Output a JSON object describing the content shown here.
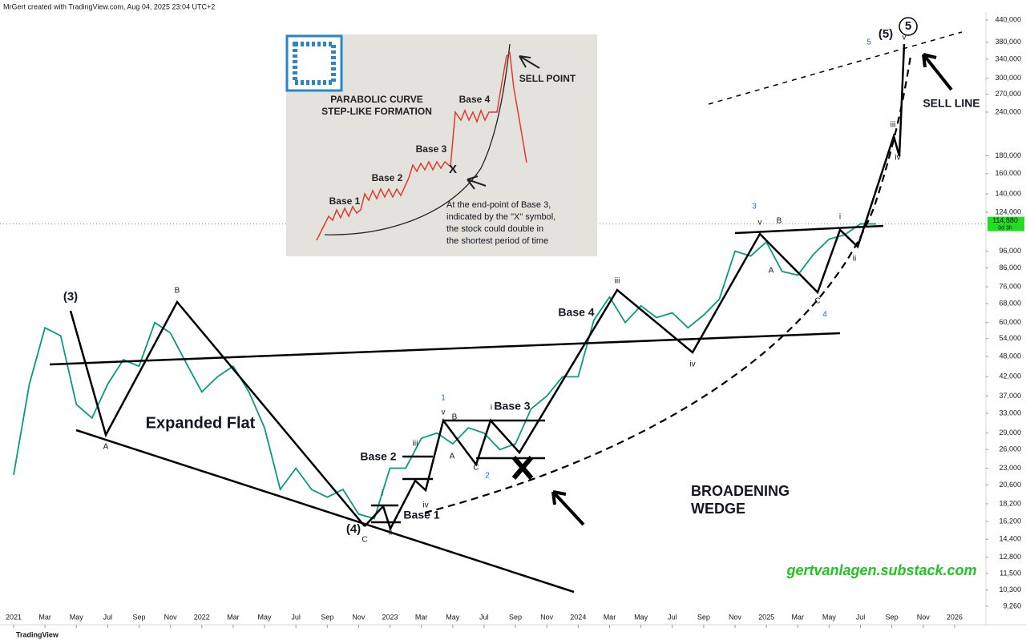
{
  "header": "MrGert created with TradingView.com, Aug 04, 2025 23:04 UTC+2",
  "footer": "TradingView",
  "chart_data": {
    "type": "line",
    "log_scale": true,
    "series": [
      {
        "name": "Price",
        "color": "#089981",
        "x": [
          "2021-01",
          "2021-02",
          "2021-03",
          "2021-04",
          "2021-05",
          "2021-06",
          "2021-07",
          "2021-08",
          "2021-09",
          "2021-10",
          "2021-11",
          "2021-12",
          "2022-01",
          "2022-02",
          "2022-03",
          "2022-04",
          "2022-05",
          "2022-06",
          "2022-07",
          "2022-08",
          "2022-09",
          "2022-10",
          "2022-11",
          "2022-12",
          "2023-01",
          "2023-02",
          "2023-03",
          "2023-04",
          "2023-05",
          "2023-06",
          "2023-07",
          "2023-08",
          "2023-09",
          "2023-10",
          "2023-11",
          "2023-12",
          "2024-01",
          "2024-02",
          "2024-03",
          "2024-04",
          "2024-05",
          "2024-06",
          "2024-07",
          "2024-08",
          "2024-09",
          "2024-10",
          "2024-11",
          "2024-12",
          "2025-01",
          "2025-02",
          "2025-03",
          "2025-04",
          "2025-05",
          "2025-06",
          "2025-07",
          "2025-08"
        ],
        "values": [
          22000,
          40000,
          58000,
          55000,
          35000,
          32000,
          40000,
          47000,
          45000,
          60000,
          56000,
          46000,
          38000,
          42000,
          45000,
          38000,
          30000,
          20000,
          23000,
          20000,
          19000,
          20000,
          17000,
          16500,
          23000,
          23000,
          28000,
          29000,
          27000,
          30000,
          29000,
          26000,
          27000,
          34000,
          37000,
          42000,
          42000,
          61000,
          71000,
          60000,
          67000,
          62000,
          64000,
          58000,
          63000,
          70000,
          96000,
          93000,
          102000,
          84000,
          82000,
          94000,
          104000,
          107000,
          115000,
          114880
        ]
      }
    ],
    "last_price": {
      "value": 114880,
      "label": "114,880"
    },
    "countdown": "0d 3h",
    "xlim": [
      "2021-01",
      "2026-03"
    ],
    "xticks": [
      {
        "value": "2021-01",
        "label": "2021"
      },
      {
        "value": "2021-03",
        "label": "Mar"
      },
      {
        "value": "2021-05",
        "label": "May"
      },
      {
        "value": "2021-07",
        "label": "Jul"
      },
      {
        "value": "2021-09",
        "label": "Sep"
      },
      {
        "value": "2021-11",
        "label": "Nov"
      },
      {
        "value": "2022-01",
        "label": "2022"
      },
      {
        "value": "2022-03",
        "label": "Mar"
      },
      {
        "value": "2022-05",
        "label": "May"
      },
      {
        "value": "2022-07",
        "label": "Jul"
      },
      {
        "value": "2022-09",
        "label": "Sep"
      },
      {
        "value": "2022-11",
        "label": "Nov"
      },
      {
        "value": "2023-01",
        "label": "2023"
      },
      {
        "value": "2023-03",
        "label": "Mar"
      },
      {
        "value": "2023-05",
        "label": "May"
      },
      {
        "value": "2023-07",
        "label": "Jul"
      },
      {
        "value": "2023-09",
        "label": "Sep"
      },
      {
        "value": "2023-11",
        "label": "Nov"
      },
      {
        "value": "2024-01",
        "label": "2024"
      },
      {
        "value": "2024-03",
        "label": "Mar"
      },
      {
        "value": "2024-05",
        "label": "May"
      },
      {
        "value": "2024-07",
        "label": "Jul"
      },
      {
        "value": "2024-09",
        "label": "Sep"
      },
      {
        "value": "2024-11",
        "label": "Nov"
      },
      {
        "value": "2025-01",
        "label": "2025"
      },
      {
        "value": "2025-03",
        "label": "Mar"
      },
      {
        "value": "2025-05",
        "label": "May"
      },
      {
        "value": "2025-07",
        "label": "Jul"
      },
      {
        "value": "2025-09",
        "label": "Sep"
      },
      {
        "value": "2025-11",
        "label": "Nov"
      },
      {
        "value": "2026-01",
        "label": "2026"
      }
    ],
    "ylim": [
      9260,
      440000
    ],
    "yticks": [
      {
        "value": 440000,
        "label": "440,000"
      },
      {
        "value": 380000,
        "label": "380,000"
      },
      {
        "value": 340000,
        "label": "340,000"
      },
      {
        "value": 300000,
        "label": "300,000"
      },
      {
        "value": 270000,
        "label": "270,000"
      },
      {
        "value": 240000,
        "label": "240,000"
      },
      {
        "value": 180000,
        "label": "180,000"
      },
      {
        "value": 160000,
        "label": "160,000"
      },
      {
        "value": 140000,
        "label": "140,000"
      },
      {
        "value": 124000,
        "label": "124,000"
      },
      {
        "value": 96000,
        "label": "96,000"
      },
      {
        "value": 86000,
        "label": "86,000"
      },
      {
        "value": 76000,
        "label": "76,000"
      },
      {
        "value": 68000,
        "label": "68,000"
      },
      {
        "value": 60000,
        "label": "60,000"
      },
      {
        "value": 54000,
        "label": "54,000"
      },
      {
        "value": 48000,
        "label": "48,000"
      },
      {
        "value": 42000,
        "label": "42,000"
      },
      {
        "value": 37000,
        "label": "37,000"
      },
      {
        "value": 33000,
        "label": "33,000"
      },
      {
        "value": 29000,
        "label": "29,000"
      },
      {
        "value": 26000,
        "label": "26,000"
      },
      {
        "value": 23000,
        "label": "23,000"
      },
      {
        "value": 20600,
        "label": "20,600"
      },
      {
        "value": 18200,
        "label": "18,200"
      },
      {
        "value": 16200,
        "label": "16,200"
      },
      {
        "value": 14400,
        "label": "14,400"
      },
      {
        "value": 12800,
        "label": "12,800"
      },
      {
        "value": 11500,
        "label": "11,500"
      },
      {
        "value": 10300,
        "label": "10,300"
      },
      {
        "value": 9260,
        "label": "9,260"
      }
    ],
    "annotations": [
      "(3)",
      "B",
      "A",
      "Expanded Flat",
      "(4)",
      "C",
      "Base 1",
      "Base 2",
      "Base 3",
      "Base 4",
      "BROADENING",
      "WEDGE",
      "SELL LINE",
      "(5)",
      "5",
      "gertvanlagen.substack.com",
      "iii",
      "iv",
      "i",
      "ii",
      "iii",
      "iv",
      "v",
      "v",
      "A",
      "B",
      "C",
      "3",
      "4",
      "5",
      "1",
      "2",
      "A",
      "B",
      "C",
      "i",
      "ii",
      "iii",
      "iv",
      "v",
      "i"
    ],
    "inset": {
      "title": [
        "PARABOLIC CURVE",
        "STEP-LIKE FORMATION"
      ],
      "bases": [
        "Base 1",
        "Base 2",
        "Base 3",
        "Base 4"
      ],
      "sell": "SELL POINT",
      "x": "X",
      "note": [
        "At the end-point of Base 3,",
        "indicated by the \"X\" symbol,",
        "the stock could double in",
        "the shortest period of time"
      ]
    }
  }
}
